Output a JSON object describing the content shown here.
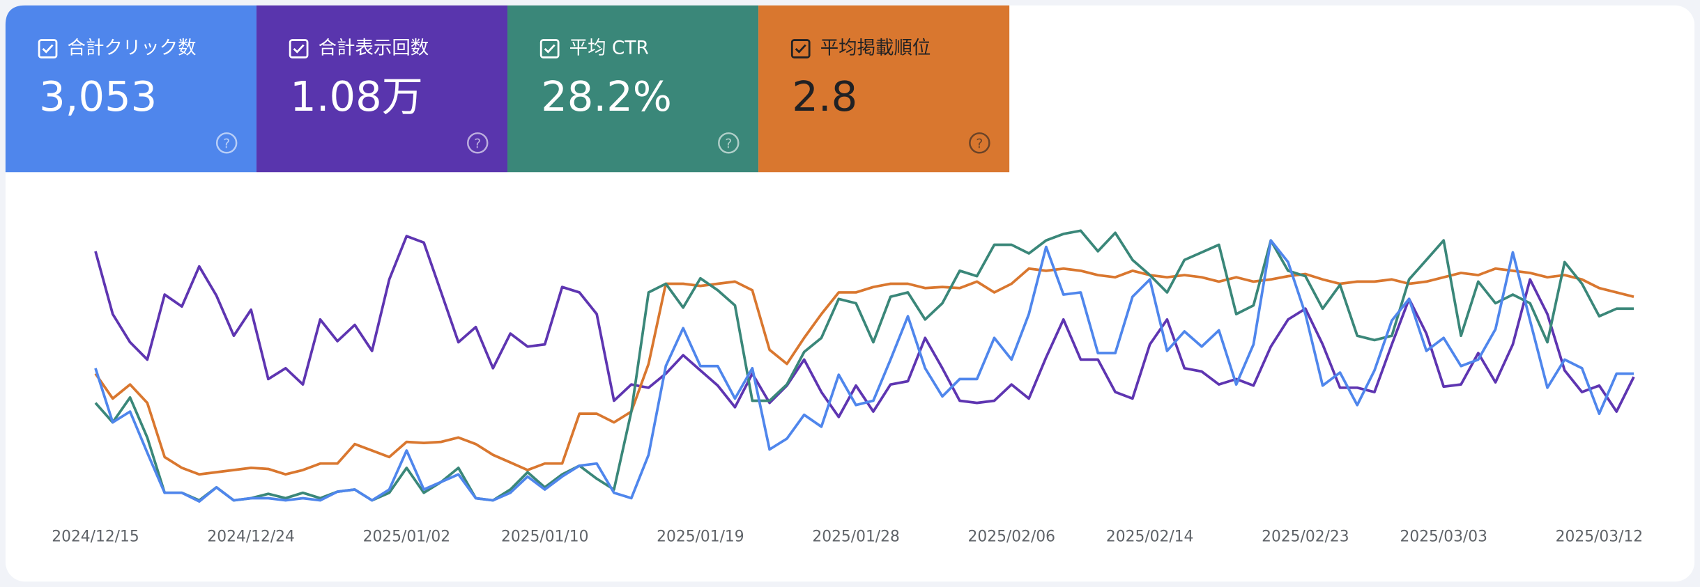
{
  "cards": [
    {
      "label": "合計クリック数",
      "value": "3,053",
      "color": "#4f86ec"
    },
    {
      "label": "合計表示回数",
      "value": "1.08万",
      "color": "#5935ad"
    },
    {
      "label": "平均 CTR",
      "value": "28.2%",
      "color": "#3a8779"
    },
    {
      "label": "平均掲載順位",
      "value": "2.8",
      "color": "#d9772f"
    }
  ],
  "chart_data": {
    "type": "line",
    "ylim": [
      0,
      300
    ],
    "categories": [
      "2024/12/15",
      null,
      null,
      null,
      null,
      null,
      null,
      null,
      null,
      "2024/12/24",
      null,
      null,
      null,
      null,
      null,
      null,
      null,
      null,
      "2025/01/02",
      null,
      null,
      null,
      null,
      null,
      null,
      null,
      "2025/01/10",
      null,
      null,
      null,
      null,
      null,
      null,
      null,
      null,
      "2025/01/19",
      null,
      null,
      null,
      null,
      null,
      null,
      null,
      null,
      "2025/01/28",
      null,
      null,
      null,
      null,
      null,
      null,
      null,
      null,
      "2025/02/06",
      null,
      null,
      null,
      null,
      null,
      null,
      null,
      "2025/02/14",
      null,
      null,
      null,
      null,
      null,
      null,
      null,
      null,
      "2025/02/23",
      null,
      null,
      null,
      null,
      null,
      null,
      null,
      "2025/03/03",
      null,
      null,
      null,
      null,
      null,
      null,
      null,
      null,
      "2025/03/12",
      null,
      null
    ],
    "series": [
      {
        "color": "#5e35b1",
        "values": [
          258,
          200,
          174,
          158,
          218,
          207,
          244,
          217,
          180,
          204,
          140,
          150,
          135,
          195,
          175,
          190,
          166,
          232,
          272,
          266,
          220,
          174,
          188,
          150,
          182,
          170,
          172,
          225,
          220,
          200,
          120,
          135,
          132,
          145,
          162,
          148,
          134,
          114,
          145,
          118,
          134,
          158,
          128,
          105,
          134,
          110,
          135,
          138,
          178,
          150,
          120,
          118,
          120,
          135,
          122,
          160,
          195,
          158,
          158,
          128,
          122,
          172,
          195,
          150,
          147,
          135,
          140,
          134,
          170,
          195,
          205,
          172,
          132,
          132,
          128,
          172,
          214,
          182,
          133,
          135,
          164,
          137,
          172,
          232,
          200,
          148,
          128,
          134,
          110,
          142
        ]
      },
      {
        "color": "#d9772f",
        "values": [
          145,
          122,
          135,
          118,
          68,
          58,
          52,
          54,
          56,
          58,
          57,
          52,
          56,
          62,
          62,
          80,
          74,
          68,
          82,
          81,
          82,
          86,
          80,
          70,
          63,
          56,
          62,
          62,
          108,
          108,
          100,
          110,
          154,
          228,
          228,
          226,
          228,
          230,
          222,
          167,
          154,
          178,
          200,
          220,
          220,
          225,
          228,
          228,
          224,
          225,
          224,
          230,
          220,
          228,
          242,
          240,
          242,
          240,
          236,
          234,
          240,
          236,
          234,
          236,
          234,
          230,
          234,
          230,
          232,
          235,
          237,
          232,
          228,
          230,
          230,
          232,
          228,
          230,
          234,
          238,
          236,
          242,
          240,
          238,
          234,
          236,
          232,
          224,
          220,
          216
        ]
      },
      {
        "color": "#3a8779",
        "values": [
          118,
          100,
          123,
          86,
          35,
          35,
          28,
          40,
          28,
          30,
          34,
          30,
          35,
          30,
          36,
          38,
          28,
          35,
          58,
          35,
          45,
          58,
          30,
          28,
          38,
          54,
          40,
          52,
          60,
          48,
          38,
          110,
          220,
          228,
          206,
          233,
          222,
          208,
          120,
          120,
          135,
          165,
          178,
          214,
          210,
          174,
          216,
          220,
          195,
          210,
          240,
          235,
          264,
          264,
          256,
          268,
          274,
          277,
          258,
          275,
          250,
          236,
          220,
          250,
          257,
          264,
          200,
          208,
          268,
          240,
          235,
          205,
          227,
          180,
          176,
          180,
          232,
          250,
          268,
          180,
          230,
          210,
          218,
          210,
          174,
          248,
          228,
          198,
          205,
          205
        ]
      },
      {
        "color": "#4f86ec",
        "values": [
          150,
          100,
          110,
          72,
          35,
          35,
          27,
          40,
          28,
          30,
          30,
          28,
          30,
          28,
          36,
          38,
          28,
          38,
          74,
          38,
          45,
          52,
          30,
          28,
          35,
          50,
          38,
          50,
          60,
          62,
          35,
          30,
          70,
          152,
          187,
          152,
          152,
          122,
          150,
          75,
          85,
          107,
          96,
          144,
          116,
          120,
          158,
          198,
          150,
          124,
          140,
          140,
          178,
          158,
          200,
          262,
          218,
          220,
          164,
          164,
          216,
          232,
          166,
          184,
          170,
          185,
          135,
          172,
          268,
          248,
          200,
          134,
          146,
          116,
          148,
          194,
          214,
          166,
          178,
          152,
          158,
          186,
          257,
          194,
          132,
          158,
          150,
          108,
          145,
          145
        ]
      }
    ]
  }
}
